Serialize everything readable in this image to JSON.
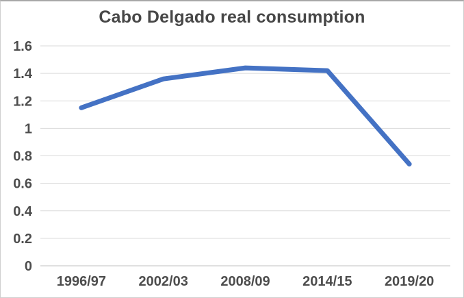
{
  "chart_data": {
    "type": "line",
    "title": "Cabo Delgado real consumption",
    "categories": [
      "1996/97",
      "2002/03",
      "2008/09",
      "2014/15",
      "2019/20"
    ],
    "series": [
      {
        "name": "Cabo Delgado real consumption",
        "values": [
          1.15,
          1.36,
          1.44,
          1.42,
          0.74
        ]
      }
    ],
    "xlabel": "",
    "ylabel": "",
    "ylim": [
      0,
      1.6
    ],
    "ytick_labels": [
      "0",
      "0.2",
      "0.4",
      "0.6",
      "0.8",
      "1",
      "1.2",
      "1.4",
      "1.6"
    ],
    "grid": true,
    "legend": "none",
    "colors": {
      "line": "#4472C4",
      "gridline": "#d9d9d9",
      "axis_line": "#c1c1c1",
      "title_text": "#474747",
      "label_text": "#4d4d4d",
      "background": "#ffffff"
    }
  }
}
